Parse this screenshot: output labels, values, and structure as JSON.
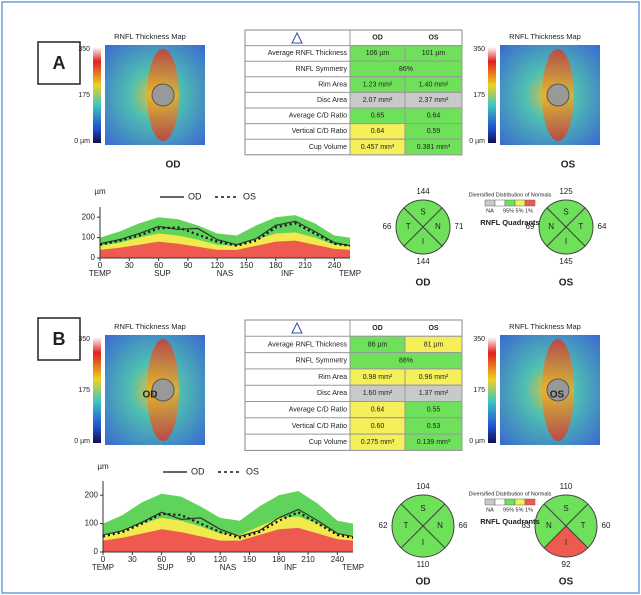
{
  "panels": [
    {
      "label": "A",
      "maps": [
        {
          "title": "RNFL Thickness Map",
          "scale": [
            "350",
            "175",
            "0 µm"
          ],
          "eye": "OD"
        },
        {
          "title": "RNFL Thickness Map",
          "scale": [
            "350",
            "175",
            "0 µm"
          ],
          "eye": "OS"
        }
      ],
      "table": {
        "header": [
          "OD",
          "OS"
        ],
        "rows": [
          {
            "label": "Average RNFL Thickness",
            "od": "106 µm",
            "od_color": "#6ee05a",
            "os": "101 µm",
            "os_color": "#6ee05a"
          },
          {
            "label": "RNFL Symmetry",
            "value": "86%",
            "color": "#6ee05a"
          },
          {
            "label": "Rim Area",
            "od": "1.23 mm²",
            "od_color": "#6ee05a",
            "os": "1.40 mm²",
            "os_color": "#6ee05a"
          },
          {
            "label": "Disc Area",
            "od": "2.07 mm²",
            "od_color": "#c9c9c9",
            "os": "2.37 mm²",
            "os_color": "#c9c9c9"
          },
          {
            "label": "Average C/D Ratio",
            "od": "0.65",
            "od_color": "#6ee05a",
            "os": "0.64",
            "os_color": "#6ee05a"
          },
          {
            "label": "Vertical C/D Ratio",
            "od": "0.64",
            "od_color": "#f5ef5a",
            "os": "0.59",
            "os_color": "#6ee05a"
          },
          {
            "label": "Cup Volume",
            "od": "0.457 mm³",
            "od_color": "#f5ef5a",
            "os": "0.381 mm³",
            "os_color": "#6ee05a"
          }
        ]
      },
      "tsnit": {
        "type": "line",
        "y_label": "µm",
        "ylim": [
          0,
          250
        ],
        "yticks": [
          0,
          100,
          200
        ],
        "xlim": [
          0,
          256
        ],
        "xticks": [
          0,
          30,
          60,
          90,
          120,
          150,
          180,
          210,
          240
        ],
        "regions": [
          "TEMP",
          "SUP",
          "NAS",
          "INF",
          "TEMP"
        ],
        "x": [
          0,
          20,
          40,
          60,
          80,
          100,
          120,
          140,
          160,
          180,
          200,
          220,
          240,
          256
        ],
        "bands": [
          {
            "color": "#5fd35a",
            "values": [
              100,
              130,
              170,
              200,
              190,
              160,
              120,
              110,
              160,
              200,
              210,
              170,
              110,
              100
            ]
          },
          {
            "color": "#f2ea4c",
            "values": [
              60,
              75,
              100,
              120,
              110,
              90,
              65,
              60,
              90,
              120,
              125,
              100,
              65,
              60
            ]
          },
          {
            "color": "#ef5a50",
            "values": [
              40,
              50,
              65,
              80,
              70,
              55,
              40,
              40,
              60,
              80,
              85,
              65,
              45,
              40
            ]
          }
        ],
        "series": [
          {
            "name": "OD",
            "color": "#333333",
            "dash": false,
            "values": [
              70,
              90,
              120,
              155,
              140,
              145,
              90,
              65,
              95,
              160,
              180,
              130,
              75,
              60
            ]
          },
          {
            "name": "OS",
            "color": "#111111",
            "dash": true,
            "values": [
              65,
              85,
              110,
              145,
              150,
              115,
              80,
              60,
              85,
              150,
              170,
              120,
              70,
              60
            ]
          }
        ]
      },
      "quadrants": [
        {
          "eye": "OD",
          "sectors": [
            {
              "letter": "S",
              "value": 144,
              "color": "#6ee05a"
            },
            {
              "letter": "N",
              "value": 71,
              "color": "#6ee05a"
            },
            {
              "letter": "I",
              "value": 144,
              "color": "#6ee05a"
            },
            {
              "letter": "T",
              "value": 66,
              "color": "#6ee05a"
            }
          ]
        },
        {
          "eye": "OS",
          "sectors": [
            {
              "letter": "S",
              "value": 125,
              "color": "#6ee05a"
            },
            {
              "letter": "T",
              "value": 64,
              "color": "#6ee05a"
            },
            {
              "letter": "I",
              "value": 145,
              "color": "#6ee05a"
            },
            {
              "letter": "N",
              "value": 69,
              "color": "#6ee05a"
            }
          ]
        }
      ],
      "legend": {
        "title": "Diversified Distribution of Normals",
        "na": "NA",
        "pct": "95% 5% 1%",
        "caption": "RNFL Quadrants"
      }
    },
    {
      "label": "B",
      "maps": [
        {
          "title": "RNFL Thickness Map",
          "scale": [
            "350",
            "175",
            "0 µm"
          ],
          "eye": "OD"
        },
        {
          "title": "RNFL Thickness Map",
          "scale": [
            "350",
            "175",
            "0 µm"
          ],
          "eye": "OS"
        }
      ],
      "table": {
        "header": [
          "OD",
          "OS"
        ],
        "rows": [
          {
            "label": "Average RNFL Thickness",
            "od": "86 µm",
            "od_color": "#6ee05a",
            "os": "81 µm",
            "os_color": "#f5ef5a"
          },
          {
            "label": "RNFL Symmetry",
            "value": "88%",
            "color": "#6ee05a"
          },
          {
            "label": "Rim Area",
            "od": "0.98 mm²",
            "od_color": "#f5ef5a",
            "os": "0.96 mm²",
            "os_color": "#f5ef5a"
          },
          {
            "label": "Disc Area",
            "od": "1.60 mm²",
            "od_color": "#c9c9c9",
            "os": "1.37 mm²",
            "os_color": "#c9c9c9"
          },
          {
            "label": "Average C/D Ratio",
            "od": "0.64",
            "od_color": "#f5ef5a",
            "os": "0.55",
            "os_color": "#6ee05a"
          },
          {
            "label": "Vertical C/D Ratio",
            "od": "0.60",
            "od_color": "#f5ef5a",
            "os": "0.53",
            "os_color": "#6ee05a"
          },
          {
            "label": "Cup Volume",
            "od": "0.275 mm³",
            "od_color": "#f5ef5a",
            "os": "0.139 mm³",
            "os_color": "#6ee05a"
          }
        ]
      },
      "tsnit": {
        "type": "line",
        "y_label": "µm",
        "ylim": [
          0,
          250
        ],
        "yticks": [
          0,
          100,
          200
        ],
        "xlim": [
          0,
          256
        ],
        "xticks": [
          0,
          30,
          60,
          90,
          120,
          150,
          180,
          210,
          240
        ],
        "regions": [
          "TEMP",
          "SUP",
          "NAS",
          "INF",
          "TEMP"
        ],
        "x": [
          0,
          20,
          40,
          60,
          80,
          100,
          120,
          140,
          160,
          180,
          200,
          220,
          240,
          256
        ],
        "bands": [
          {
            "color": "#5fd35a",
            "values": [
              100,
              130,
              175,
              205,
              195,
              160,
              120,
              110,
              160,
              200,
              215,
              170,
              110,
              100
            ]
          },
          {
            "color": "#f2ea4c",
            "values": [
              60,
              75,
              100,
              120,
              110,
              90,
              65,
              60,
              90,
              120,
              125,
              100,
              65,
              60
            ]
          },
          {
            "color": "#ef5a50",
            "values": [
              40,
              50,
              65,
              80,
              70,
              55,
              40,
              40,
              60,
              80,
              85,
              65,
              45,
              40
            ]
          }
        ],
        "series": [
          {
            "name": "OD",
            "color": "#333333",
            "dash": false,
            "values": [
              60,
              75,
              105,
              140,
              115,
              120,
              80,
              55,
              75,
              120,
              150,
              110,
              65,
              55
            ]
          },
          {
            "name": "OS",
            "color": "#111111",
            "dash": true,
            "values": [
              55,
              70,
              100,
              135,
              130,
              100,
              70,
              50,
              70,
              110,
              140,
              100,
              60,
              50
            ]
          }
        ]
      },
      "quadrants": [
        {
          "eye": "OD",
          "sectors": [
            {
              "letter": "S",
              "value": 104,
              "color": "#6ee05a"
            },
            {
              "letter": "N",
              "value": 66,
              "color": "#6ee05a"
            },
            {
              "letter": "I",
              "value": 110,
              "color": "#6ee05a"
            },
            {
              "letter": "T",
              "value": 62,
              "color": "#6ee05a"
            }
          ]
        },
        {
          "eye": "OS",
          "sectors": [
            {
              "letter": "S",
              "value": 110,
              "color": "#6ee05a"
            },
            {
              "letter": "T",
              "value": 60,
              "color": "#6ee05a"
            },
            {
              "letter": "I",
              "value": 92,
              "color": "#ef5a50"
            },
            {
              "letter": "N",
              "value": 63,
              "color": "#6ee05a"
            }
          ]
        }
      ],
      "legend": {
        "title": "Diversified Distribution of Normals",
        "na": "NA",
        "pct": "95% 5% 1%",
        "caption": "RNFL Quadrants"
      }
    }
  ]
}
